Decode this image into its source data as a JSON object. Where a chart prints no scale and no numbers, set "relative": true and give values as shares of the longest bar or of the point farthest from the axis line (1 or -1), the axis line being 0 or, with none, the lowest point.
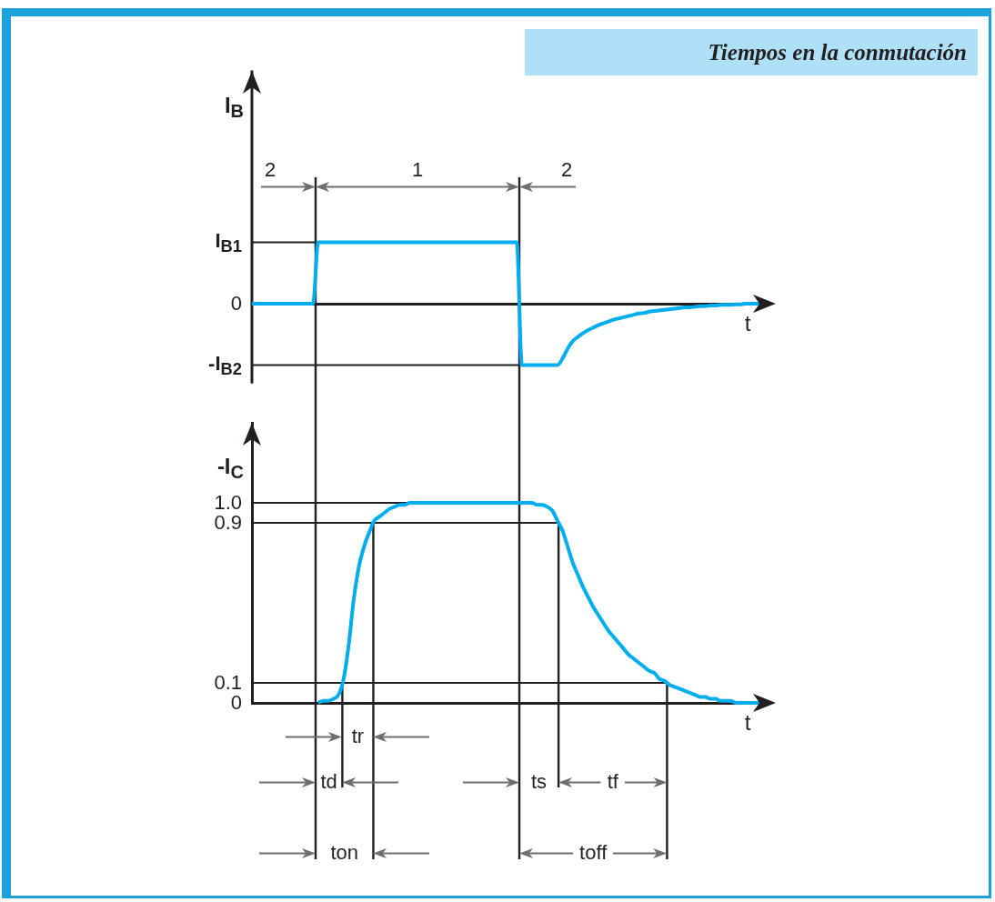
{
  "chart_data": [
    {
      "type": "line",
      "title": "Tiempos en la conmutación",
      "xlabel": "t",
      "ylabel": "I$_{B}$",
      "relative": true,
      "categories": [
        null,
        null,
        null,
        null,
        null,
        null,
        null,
        null,
        null,
        null,
        null,
        null,
        null,
        null,
        null,
        null,
        null,
        null,
        null,
        null,
        null,
        null,
        null,
        null,
        null,
        null,
        null,
        null,
        null,
        null,
        null,
        null,
        null,
        null,
        null,
        null,
        null,
        null,
        null,
        null,
        null,
        null,
        null,
        null,
        null,
        null,
        null,
        null,
        null,
        null,
        null,
        null,
        null,
        null,
        null,
        null,
        null,
        null,
        null,
        null,
        null,
        null,
        null,
        null,
        null,
        null,
        null,
        null,
        null,
        null,
        null,
        null,
        null,
        null,
        null,
        null,
        null,
        null,
        null,
        null,
        null,
        null,
        null,
        null,
        null,
        null,
        null,
        null,
        null,
        null,
        null,
        null,
        null,
        null,
        null,
        null,
        null,
        null,
        null,
        null,
        null
      ],
      "series": [
        {
          "color": "#00aeef",
          "values": [
            0,
            0,
            0,
            0,
            0,
            0,
            0,
            0,
            0,
            0,
            0,
            0,
            0,
            1,
            1,
            1,
            1,
            1,
            1,
            1,
            1,
            1,
            1,
            1,
            1,
            1,
            1,
            1,
            1,
            1,
            1,
            1,
            1,
            1,
            1,
            1,
            1,
            1,
            1,
            1,
            1,
            1,
            1,
            1,
            1,
            1,
            1,
            1,
            1,
            1,
            1,
            1,
            1,
            -1,
            -1,
            -1,
            -1,
            -1,
            -1,
            -1,
            -1,
            -0.89,
            -0.73,
            -0.61,
            -0.54,
            -0.48,
            -0.43,
            -0.39,
            -0.35,
            -0.32,
            -0.29,
            -0.26,
            -0.24,
            -0.22,
            -0.2,
            -0.18,
            -0.16,
            -0.15,
            -0.13,
            -0.12,
            -0.11,
            -0.1,
            -0.09,
            -0.08,
            -0.07,
            -0.06,
            -0.06,
            -0.05,
            -0.04,
            -0.04,
            -0.03,
            -0.03,
            -0.02,
            -0.02,
            -0.02,
            -0.01,
            -0.01,
            0,
            0,
            0,
            0
          ]
        }
      ],
      "ref_lines": [
        {
          "axis": "y",
          "value": 1,
          "label": "I$_{B1}$"
        },
        {
          "axis": "y",
          "value": 0,
          "label": "0"
        },
        {
          "axis": "y",
          "value": -1,
          "label": "-I$_{B2}$"
        }
      ],
      "annotations": [
        "2",
        "1",
        "2"
      ]
    },
    {
      "type": "line",
      "xlabel": "t",
      "ylabel": "-I$_{C}$",
      "categories": [
        null,
        null,
        null,
        null,
        null,
        null,
        null,
        null,
        null,
        null,
        null,
        null,
        null,
        null,
        null,
        null,
        null,
        null,
        null,
        null,
        null,
        null,
        null,
        null,
        null,
        null,
        null,
        null,
        null,
        null,
        null,
        null,
        null,
        null,
        null,
        null,
        null,
        null,
        null,
        null,
        null,
        null,
        null,
        null,
        null,
        null,
        null,
        null,
        null,
        null,
        null,
        null,
        null,
        null,
        null,
        null,
        null,
        null,
        null,
        null,
        null,
        null,
        null,
        null,
        null,
        null,
        null,
        null,
        null,
        null,
        null,
        null,
        null,
        null,
        null,
        null,
        null,
        null,
        null,
        null,
        null,
        null,
        null,
        null,
        null,
        null,
        null,
        null,
        null,
        null,
        null,
        null,
        null,
        null,
        null,
        null,
        null,
        null,
        null,
        null,
        null
      ],
      "series": [
        {
          "color": "#00aeef",
          "values": [
            null,
            null,
            null,
            null,
            null,
            null,
            null,
            null,
            null,
            null,
            null,
            null,
            null,
            0,
            0.01,
            0.01,
            0.02,
            0.04,
            0.12,
            0.29,
            0.52,
            0.68,
            0.78,
            0.85,
            0.91,
            0.93,
            0.95,
            0.97,
            0.98,
            0.99,
            0.99,
            1,
            1,
            1,
            1,
            1,
            1,
            1,
            1,
            1,
            1,
            1,
            1,
            1,
            1,
            1,
            1,
            1,
            1,
            1,
            1,
            1,
            1,
            1,
            1,
            1,
            0.99,
            0.99,
            0.98,
            0.96,
            0.91,
            0.86,
            0.78,
            0.7,
            0.64,
            0.58,
            0.53,
            0.48,
            0.44,
            0.4,
            0.36,
            0.33,
            0.3,
            0.27,
            0.24,
            0.22,
            0.2,
            0.18,
            0.16,
            0.15,
            0.12,
            0.11,
            0.09,
            0.08,
            0.07,
            0.06,
            0.05,
            0.04,
            0.03,
            0.03,
            0.02,
            0.02,
            0.01,
            0.01,
            0.01,
            0,
            0,
            0,
            0,
            0,
            0
          ]
        }
      ],
      "ylim": [
        0,
        1.4
      ],
      "yticks": [
        0,
        0.1,
        0.9,
        {
          "value": 1,
          "label": "1.0"
        }
      ],
      "ref_lines": [
        {
          "axis": "y",
          "value": 1
        },
        {
          "axis": "y",
          "value": 0.9
        },
        {
          "axis": "y",
          "value": 0.1
        }
      ],
      "annotations": [
        "tr",
        "td",
        "ts",
        "tf",
        "ton",
        "toff"
      ]
    }
  ]
}
